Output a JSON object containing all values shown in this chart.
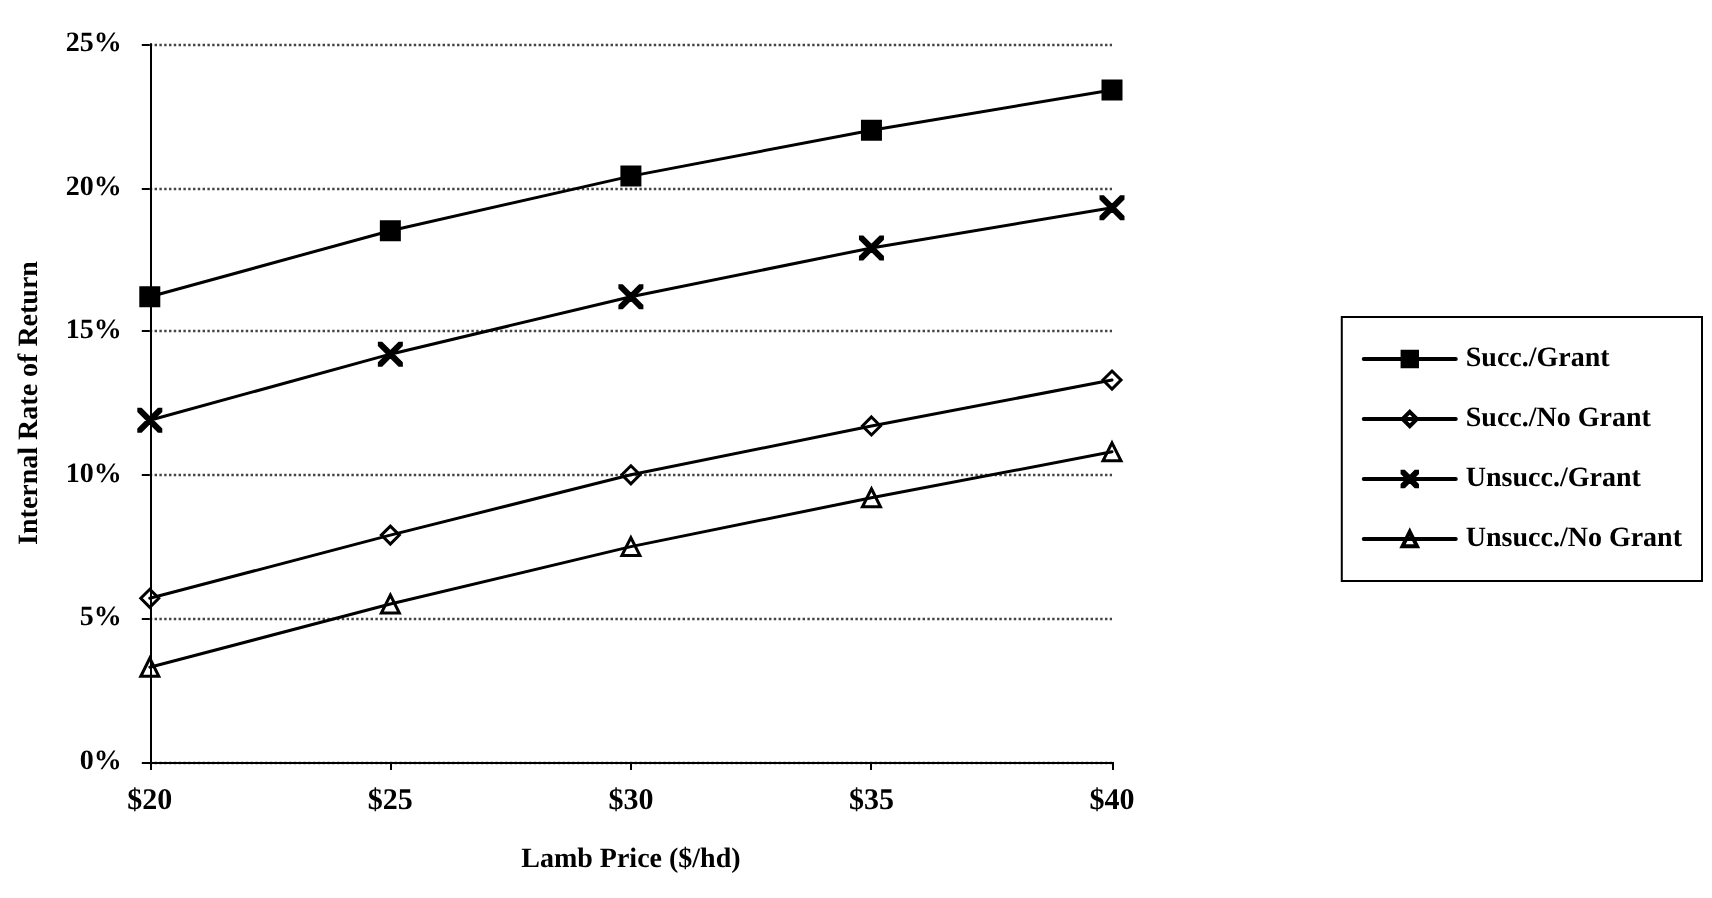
{
  "chart_data": {
    "type": "line",
    "xlabel": "Lamb Price ($/hd)",
    "ylabel": "Internal Rate of Return",
    "categories": [
      "$20",
      "$25",
      "$30",
      "$35",
      "$40"
    ],
    "series": [
      {
        "name": "Succ./Grant",
        "color": "#000000",
        "marker": "square",
        "values": [
          16.2,
          18.5,
          20.4,
          22.0,
          23.4
        ]
      },
      {
        "name": "Succ./No Grant",
        "color": "#000000",
        "marker": "diamond",
        "values": [
          5.7,
          7.9,
          10.0,
          11.7,
          13.3
        ]
      },
      {
        "name": "Unsucc./Grant",
        "color": "#000000",
        "marker": "cross",
        "values": [
          11.9,
          14.2,
          16.2,
          17.9,
          19.3
        ]
      },
      {
        "name": "Unsucc./No Grant",
        "color": "#000000",
        "marker": "triangle",
        "values": [
          3.3,
          5.5,
          7.5,
          9.2,
          10.8
        ]
      }
    ],
    "ylim": [
      0,
      25
    ],
    "yticks": [
      {
        "value": 0,
        "label": "0%"
      },
      {
        "value": 5,
        "label": "5%"
      },
      {
        "value": 10,
        "label": "10%"
      },
      {
        "value": 15,
        "label": "15%"
      },
      {
        "value": 20,
        "label": "20%"
      },
      {
        "value": 25,
        "label": "25%"
      }
    ],
    "grid": "y",
    "legend": "right",
    "line_style": "solid"
  }
}
